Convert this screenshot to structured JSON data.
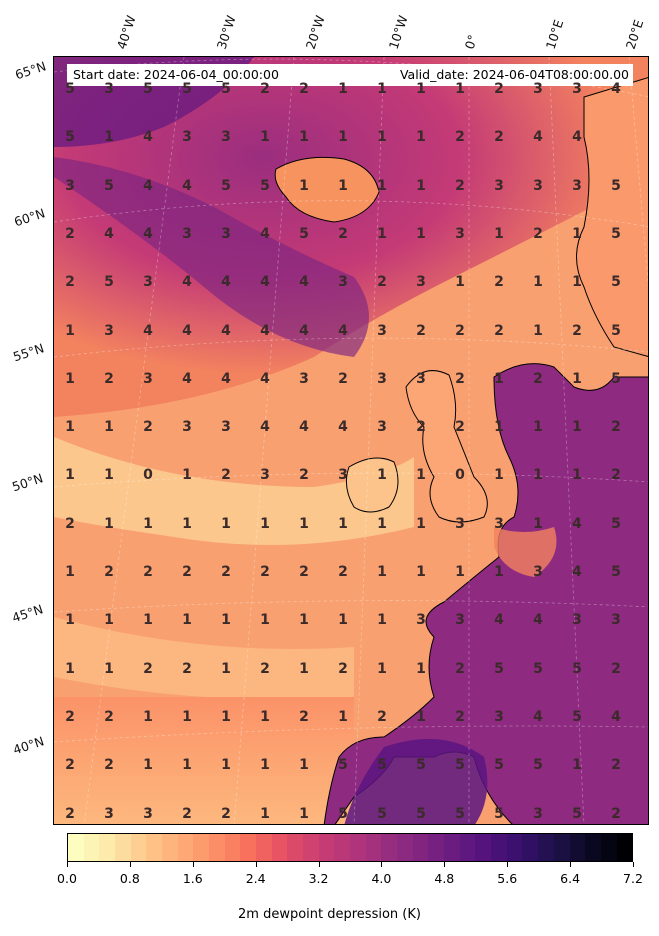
{
  "header": {
    "start_date": "Start date: 2024-06-04_00:00:00",
    "valid_date": "Valid_date: 2024-06-04T08:00:00.00"
  },
  "lon_labels": [
    "40°W",
    "30°W",
    "20°W",
    "10°W",
    "0°",
    "10°E",
    "20°E"
  ],
  "lat_labels": [
    "65°N",
    "60°N",
    "55°N",
    "50°N",
    "45°N",
    "40°N"
  ],
  "grid_values": [
    [
      "5",
      "3",
      "5",
      "5",
      "5",
      "2",
      "2",
      "1",
      "1",
      "1",
      "1",
      "2",
      "3",
      "3",
      "4"
    ],
    [
      "5",
      "1",
      "4",
      "3",
      "3",
      "1",
      "1",
      "1",
      "1",
      "1",
      "2",
      "2",
      "4",
      "4",
      ""
    ],
    [
      "3",
      "5",
      "4",
      "4",
      "5",
      "5",
      "1",
      "1",
      "1",
      "1",
      "2",
      "3",
      "3",
      "3",
      "5"
    ],
    [
      "2",
      "4",
      "4",
      "3",
      "3",
      "4",
      "5",
      "2",
      "1",
      "1",
      "3",
      "1",
      "2",
      "1",
      "5"
    ],
    [
      "2",
      "5",
      "3",
      "4",
      "4",
      "4",
      "4",
      "3",
      "2",
      "3",
      "1",
      "2",
      "1",
      "1",
      "5"
    ],
    [
      "1",
      "3",
      "4",
      "4",
      "4",
      "4",
      "4",
      "4",
      "3",
      "2",
      "2",
      "2",
      "1",
      "2",
      "5"
    ],
    [
      "1",
      "2",
      "3",
      "4",
      "4",
      "4",
      "3",
      "2",
      "3",
      "3",
      "2",
      "1",
      "2",
      "1",
      "5"
    ],
    [
      "1",
      "1",
      "2",
      "3",
      "3",
      "4",
      "4",
      "4",
      "3",
      "2",
      "2",
      "1",
      "1",
      "1",
      "2"
    ],
    [
      "1",
      "1",
      "0",
      "1",
      "2",
      "3",
      "2",
      "3",
      "1",
      "1",
      "0",
      "1",
      "1",
      "1",
      "2"
    ],
    [
      "2",
      "1",
      "1",
      "1",
      "1",
      "1",
      "1",
      "1",
      "1",
      "1",
      "3",
      "3",
      "1",
      "4",
      "5"
    ],
    [
      "1",
      "2",
      "2",
      "2",
      "2",
      "2",
      "2",
      "2",
      "1",
      "1",
      "1",
      "1",
      "3",
      "4",
      "5"
    ],
    [
      "1",
      "1",
      "1",
      "1",
      "1",
      "1",
      "1",
      "1",
      "1",
      "3",
      "3",
      "4",
      "4",
      "3",
      "3"
    ],
    [
      "1",
      "1",
      "2",
      "2",
      "1",
      "2",
      "1",
      "2",
      "1",
      "1",
      "2",
      "5",
      "5",
      "5",
      "2"
    ],
    [
      "2",
      "2",
      "1",
      "1",
      "1",
      "1",
      "2",
      "1",
      "2",
      "1",
      "2",
      "3",
      "4",
      "5",
      "4"
    ],
    [
      "2",
      "2",
      "1",
      "1",
      "1",
      "1",
      "1",
      "5",
      "5",
      "5",
      "5",
      "5",
      "5",
      "1",
      "2"
    ],
    [
      "2",
      "3",
      "3",
      "2",
      "2",
      "1",
      "1",
      "5",
      "5",
      "5",
      "5",
      "5",
      "3",
      "5",
      "2"
    ]
  ],
  "colorbar": {
    "tick_labels": [
      "0.0",
      "0.8",
      "1.6",
      "2.4",
      "3.2",
      "4.0",
      "4.8",
      "5.6",
      "6.4",
      "7.2"
    ],
    "title": "2m dewpoint depression (K)",
    "colors": [
      "#fcfdbf",
      "#fde9a9",
      "#feca8d",
      "#fdae78",
      "#fb9268",
      "#f7725c",
      "#e75263",
      "#cc3f71",
      "#b5367a",
      "#9b2e7f",
      "#822681",
      "#6a1c81",
      "#51127c",
      "#36106b",
      "#1d1147",
      "#0b0924",
      "#000004"
    ]
  }
}
